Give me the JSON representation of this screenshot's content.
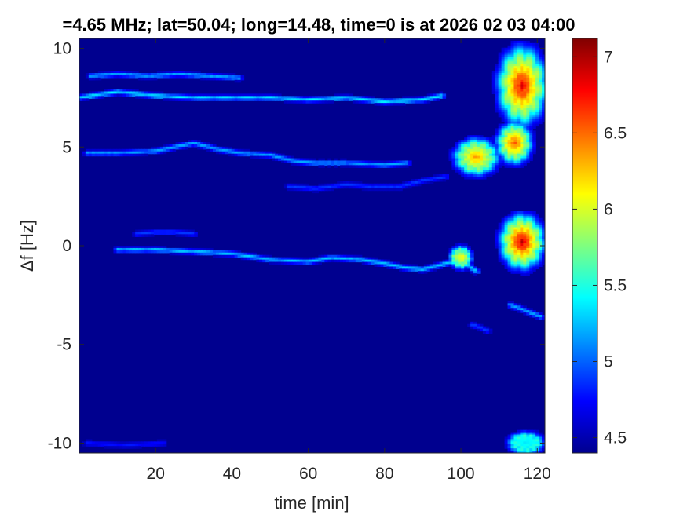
{
  "chart_data": {
    "type": "heatmap",
    "title": "=4.65 MHz;  lat=50.04; long=14.48, time=0 is at 2026 02 03 04:00",
    "xlabel": "time [min]",
    "ylabel": "Δf [Hz]",
    "xlim": [
      0,
      122
    ],
    "ylim": [
      -10.5,
      10.5
    ],
    "x_ticks": [
      20,
      40,
      60,
      80,
      100,
      120
    ],
    "y_ticks": [
      10,
      5,
      0,
      -5,
      -10
    ],
    "colorbar": {
      "colormap": "jet",
      "range": [
        4.4,
        7.12
      ],
      "ticks": [
        4.5,
        5,
        5.5,
        6,
        6.5,
        7
      ]
    },
    "background_value": 4.45,
    "traces": [
      {
        "x": [
          3,
          10,
          18,
          26,
          34,
          42
        ],
        "y": [
          8.6,
          8.7,
          8.6,
          8.7,
          8.6,
          8.5
        ],
        "value": 5.2
      },
      {
        "x": [
          0,
          10,
          20,
          30,
          40,
          50,
          60,
          70,
          80,
          90,
          95
        ],
        "y": [
          7.5,
          7.8,
          7.6,
          7.5,
          7.5,
          7.5,
          7.4,
          7.5,
          7.3,
          7.4,
          7.6
        ],
        "value": 5.4
      },
      {
        "x": [
          2,
          10,
          20,
          25,
          30,
          36,
          42,
          50,
          56,
          62,
          70,
          80,
          86
        ],
        "y": [
          4.7,
          4.7,
          4.8,
          5.0,
          5.2,
          4.9,
          4.7,
          4.6,
          4.3,
          4.2,
          4.2,
          4.1,
          4.2
        ],
        "value": 5.2
      },
      {
        "x": [
          55,
          62,
          70,
          76,
          84,
          90,
          96
        ],
        "y": [
          3.0,
          2.9,
          3.1,
          3.0,
          3.0,
          3.3,
          3.5
        ],
        "value": 4.9
      },
      {
        "x": [
          15,
          20,
          25,
          30
        ],
        "y": [
          0.6,
          0.7,
          0.7,
          0.6
        ],
        "value": 4.9
      },
      {
        "x": [
          10,
          20,
          30,
          40,
          50,
          60,
          66,
          74,
          80,
          85,
          90,
          96,
          100,
          104
        ],
        "y": [
          -0.2,
          -0.2,
          -0.3,
          -0.4,
          -0.7,
          -0.8,
          -0.6,
          -0.7,
          -0.9,
          -1.1,
          -1.2,
          -0.9,
          -0.7,
          -1.3
        ],
        "value": 5.3
      },
      {
        "x": [
          113,
          117,
          121
        ],
        "y": [
          -3.0,
          -3.3,
          -3.6
        ],
        "value": 5.2
      },
      {
        "x": [
          103,
          107
        ],
        "y": [
          -4.0,
          -4.3
        ],
        "value": 4.9
      },
      {
        "x": [
          2,
          12,
          22
        ],
        "y": [
          -10.0,
          -10.1,
          -10.0
        ],
        "value": 4.8
      }
    ],
    "hotspots": [
      {
        "x": 116,
        "y": 8.1,
        "dx": 5.5,
        "dy": 1.7,
        "peak": 6.9
      },
      {
        "x": 104,
        "y": 4.5,
        "dx": 5.0,
        "dy": 0.8,
        "peak": 6.4
      },
      {
        "x": 114,
        "y": 5.2,
        "dx": 4.0,
        "dy": 0.9,
        "peak": 6.6
      },
      {
        "x": 116,
        "y": 0.2,
        "dx": 5.0,
        "dy": 1.2,
        "peak": 7.0
      },
      {
        "x": 100,
        "y": -0.6,
        "dx": 2.5,
        "dy": 0.5,
        "peak": 6.2
      },
      {
        "x": 117,
        "y": -10.0,
        "dx": 4.0,
        "dy": 0.5,
        "peak": 5.4
      }
    ]
  }
}
